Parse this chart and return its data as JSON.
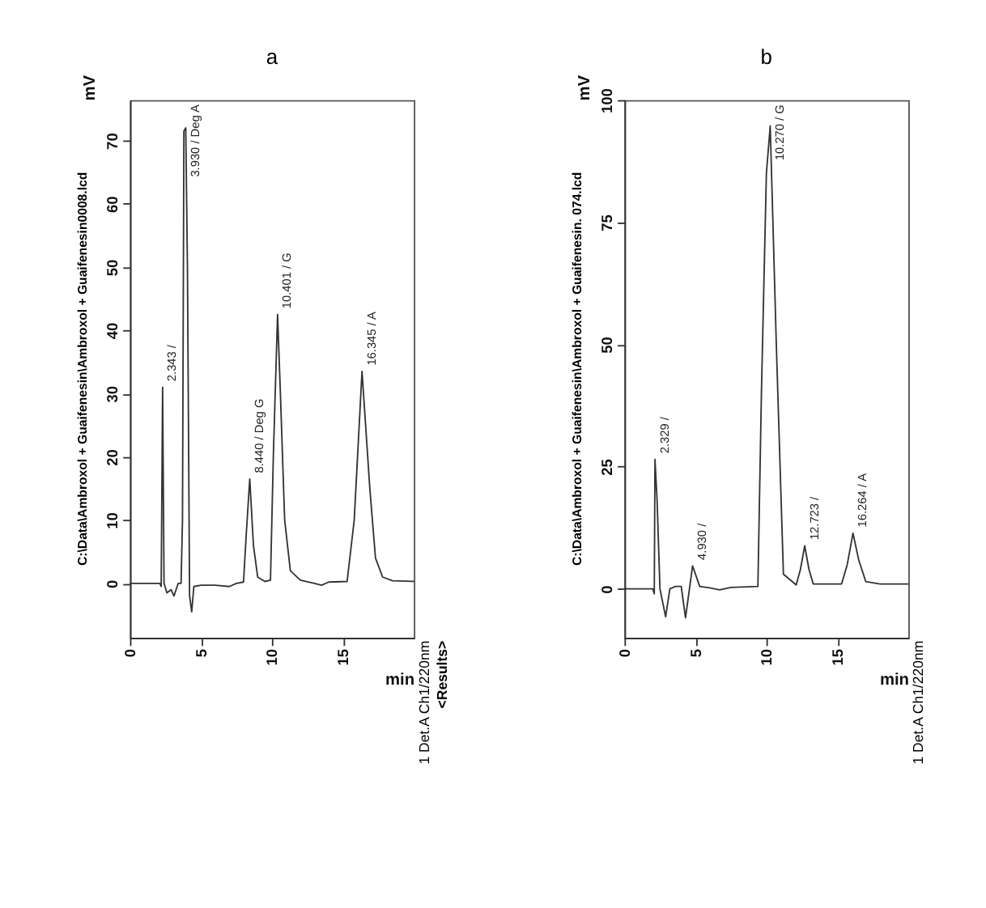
{
  "chart_data": [
    {
      "type": "line",
      "title": "a",
      "xlabel": "min",
      "ylabel": "mV",
      "xlim": [
        0,
        20
      ],
      "ylim": [
        -8.6,
        76.4
      ],
      "xticks": [
        0,
        5,
        10,
        15
      ],
      "yticks": [
        0,
        10,
        20,
        30,
        40,
        50,
        60,
        70
      ],
      "grid": false,
      "marker": "none",
      "line_style": "solid",
      "series": [
        {
          "color": "#333333",
          "x": [
            0,
            2.1,
            2.2,
            2.3,
            2.4,
            2.6,
            2.9,
            3.1,
            3.4,
            3.6,
            3.7,
            3.8,
            3.93,
            4.05,
            4.2,
            4.35,
            4.5,
            5,
            6,
            7,
            7.5,
            8.0,
            8.2,
            8.44,
            8.7,
            9,
            9.5,
            9.9,
            10.1,
            10.4,
            10.6,
            10.9,
            11.3,
            12,
            13,
            13.5,
            14,
            15.3,
            15.8,
            16.35,
            16.9,
            17.3,
            17.8,
            18.5,
            20
          ],
          "values": [
            0,
            0,
            -0.5,
            31,
            0,
            -1.5,
            -1,
            -2,
            0,
            0,
            10,
            71.5,
            72,
            50,
            -2,
            -4.5,
            -0.5,
            -0.3,
            -0.3,
            -0.5,
            0,
            0.2,
            8,
            16.5,
            6,
            1,
            0.3,
            0.5,
            20,
            42.5,
            30,
            10,
            2,
            0.5,
            0,
            -0.3,
            0.2,
            0.3,
            10,
            33.5,
            15,
            4,
            1,
            0.4,
            0.3
          ]
        }
      ],
      "annotations": [
        "C:\\Data\\Ambroxol + Guaifenesin\\Ambroxol + Guaifenesin0008.lcd",
        "1 Det.A Ch1/220nm",
        "<Results>",
        {
          "text": "2.343 /",
          "x": 2.3,
          "y": 31
        },
        {
          "text": "3.930 / Deg A",
          "x": 3.93,
          "y": 72
        },
        {
          "text": "8.440 / Deg G",
          "x": 8.44,
          "y": 16.5
        },
        {
          "text": "10.401 / G",
          "x": 10.4,
          "y": 42.5
        },
        {
          "text": "16.345 / A",
          "x": 16.35,
          "y": 33.5
        }
      ]
    },
    {
      "type": "line",
      "title": "b",
      "xlabel": "min",
      "ylabel": "mV",
      "xlim": [
        0,
        20
      ],
      "ylim": [
        -10,
        100
      ],
      "xticks": [
        0,
        5,
        10,
        15
      ],
      "yticks": [
        0,
        25,
        50,
        75,
        100
      ],
      "grid": false,
      "marker": "none",
      "line_style": "solid",
      "series": [
        {
          "color": "#333333",
          "x": [
            0,
            2.0,
            2.1,
            2.15,
            2.3,
            2.5,
            2.9,
            3.2,
            3.6,
            4.0,
            4.3,
            4.8,
            5.3,
            6.0,
            6.7,
            7.5,
            9.4,
            9.65,
            10.0,
            10.27,
            10.7,
            11.2,
            12.1,
            12.4,
            12.7,
            13.0,
            13.3,
            15.3,
            15.7,
            16.1,
            16.5,
            17.0,
            18,
            20
          ],
          "values": [
            0,
            0,
            -1,
            26.5,
            18,
            0,
            -5.7,
            0,
            0.5,
            0.5,
            -5.9,
            4.7,
            0.5,
            0.2,
            -0.2,
            0.3,
            0.5,
            40,
            85,
            94.7,
            50,
            3,
            0.8,
            4,
            8.8,
            4,
            1,
            1,
            5,
            11.4,
            6,
            1.5,
            1,
            1
          ]
        }
      ],
      "annotations": [
        "C:\\Data\\Ambroxol + Guaifenesin\\Ambroxol + Guaifenesin. 074.lcd",
        "1 Det.A Ch1/220nm",
        {
          "text": "2.329 /",
          "x": 2.15,
          "y": 26.5
        },
        {
          "text": "4.930 /",
          "x": 4.8,
          "y": 4.7
        },
        {
          "text": "10.270 / G",
          "x": 10.27,
          "y": 94.7
        },
        {
          "text": "12.723 /",
          "x": 12.7,
          "y": 8.8
        },
        {
          "text": "16.264 / A",
          "x": 16.1,
          "y": 11.4
        }
      ]
    }
  ]
}
